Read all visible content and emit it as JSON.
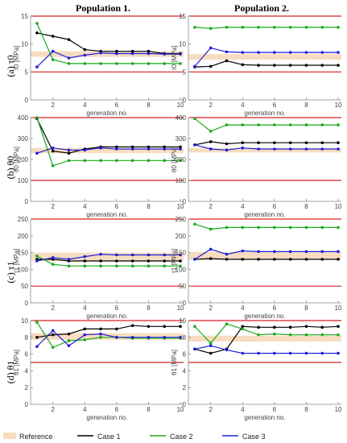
{
  "figure": {
    "columns": [
      "Population 1.",
      "Population 2."
    ],
    "rows": [
      {
        "label": "(a) τ0"
      },
      {
        "label": "(b) θ0"
      },
      {
        "label": "(c) τ1"
      },
      {
        "label": "(d) θ1"
      }
    ]
  },
  "legend": {
    "items": [
      {
        "label": "Reference",
        "color": "#f7dcc0",
        "kind": "band"
      },
      {
        "label": "Case 1",
        "color": "#000000",
        "kind": "line"
      },
      {
        "label": "Case 2",
        "color": "#1aaa1a",
        "kind": "line"
      },
      {
        "label": "Case 3",
        "color": "#1f1fd6",
        "kind": "line"
      }
    ]
  },
  "colors": {
    "bound": "#d62020",
    "reference": "#f7dcc0",
    "case1": "#000000",
    "case2": "#1aaa1a",
    "case3": "#1f1fd6"
  },
  "chart_data": [
    {
      "type": "line",
      "id": "tau0-pop1",
      "xlabel": "generation no.",
      "ylabel": "τ0 [MPa]",
      "xlim": [
        0.6,
        10.2
      ],
      "ylim": [
        0,
        15
      ],
      "xticks": [
        2,
        4,
        6,
        8,
        10
      ],
      "yticks": [
        0,
        5,
        10,
        15
      ],
      "bounds": [
        5,
        15
      ],
      "reference": [
        7.7,
        8.7
      ],
      "x": [
        1,
        2,
        3,
        4,
        5,
        6,
        7,
        8,
        9,
        10
      ],
      "series": [
        {
          "name": "Case 1",
          "values": [
            12.0,
            11.4,
            10.8,
            9.0,
            8.7,
            8.7,
            8.7,
            8.7,
            8.3,
            8.3
          ]
        },
        {
          "name": "Case 2",
          "values": [
            13.7,
            7.2,
            6.5,
            6.5,
            6.5,
            6.5,
            6.5,
            6.5,
            6.5,
            6.5
          ]
        },
        {
          "name": "Case 3",
          "values": [
            5.9,
            8.7,
            7.5,
            8.0,
            8.4,
            8.3,
            8.3,
            8.3,
            8.2,
            8.2
          ]
        }
      ]
    },
    {
      "type": "line",
      "id": "tau0-pop2",
      "xlabel": "generation no.",
      "ylabel": "τ0 [MPa]",
      "xlim": [
        0.6,
        10.2
      ],
      "ylim": [
        0,
        15
      ],
      "xticks": [
        2,
        4,
        6,
        8,
        10
      ],
      "yticks": [
        0,
        5,
        10,
        15
      ],
      "bounds": [
        5,
        15
      ],
      "reference": [
        7.2,
        8.2
      ],
      "x": [
        1,
        2,
        3,
        4,
        5,
        6,
        7,
        8,
        9,
        10
      ],
      "series": [
        {
          "name": "Case 1",
          "values": [
            5.9,
            6.0,
            7.0,
            6.3,
            6.2,
            6.2,
            6.2,
            6.2,
            6.2,
            6.2
          ]
        },
        {
          "name": "Case 2",
          "values": [
            13.0,
            12.8,
            13.0,
            13.0,
            13.0,
            13.0,
            13.0,
            13.0,
            13.0,
            13.0
          ]
        },
        {
          "name": "Case 3",
          "values": [
            6.0,
            9.3,
            8.6,
            8.5,
            8.5,
            8.5,
            8.5,
            8.5,
            8.5,
            8.5
          ]
        }
      ]
    },
    {
      "type": "line",
      "id": "theta0-pop1",
      "xlabel": "generation no.",
      "ylabel": "θ0 [MPa]",
      "xlim": [
        0.6,
        10.2
      ],
      "ylim": [
        0,
        400
      ],
      "xticks": [
        2,
        4,
        6,
        8,
        10
      ],
      "yticks": [
        0,
        100,
        200,
        300,
        400
      ],
      "bounds": [
        100,
        400
      ],
      "reference": [
        230,
        255
      ],
      "x": [
        1,
        2,
        3,
        4,
        5,
        6,
        7,
        8,
        9,
        10
      ],
      "series": [
        {
          "name": "Case 1",
          "values": [
            395,
            240,
            230,
            250,
            260,
            260,
            260,
            260,
            260,
            260
          ]
        },
        {
          "name": "Case 2",
          "values": [
            400,
            170,
            195,
            195,
            195,
            195,
            195,
            195,
            195,
            195
          ]
        },
        {
          "name": "Case 3",
          "values": [
            230,
            255,
            245,
            245,
            255,
            250,
            250,
            250,
            250,
            250
          ]
        }
      ]
    },
    {
      "type": "line",
      "id": "theta0-pop2",
      "xlabel": "generation no.",
      "ylabel": "θ0 [MPa]",
      "xlim": [
        0.6,
        10.2
      ],
      "ylim": [
        0,
        400
      ],
      "xticks": [
        2,
        4,
        6,
        8,
        10
      ],
      "yticks": [
        0,
        100,
        200,
        300,
        400
      ],
      "bounds": [
        100,
        400
      ],
      "reference": [
        233,
        255
      ],
      "x": [
        1,
        2,
        3,
        4,
        5,
        6,
        7,
        8,
        9,
        10
      ],
      "series": [
        {
          "name": "Case 1",
          "values": [
            270,
            285,
            275,
            280,
            280,
            280,
            280,
            280,
            280,
            280
          ]
        },
        {
          "name": "Case 2",
          "values": [
            395,
            335,
            365,
            365,
            365,
            365,
            365,
            365,
            365,
            365
          ]
        },
        {
          "name": "Case 3",
          "values": [
            270,
            250,
            245,
            255,
            250,
            250,
            250,
            250,
            250,
            250
          ]
        }
      ]
    },
    {
      "type": "line",
      "id": "tau1-pop1",
      "xlabel": "generation no.",
      "ylabel": "τ1 [MPa]",
      "xlim": [
        0.6,
        10.2
      ],
      "ylim": [
        0,
        250
      ],
      "xticks": [
        2,
        4,
        6,
        8,
        10
      ],
      "yticks": [
        0,
        50,
        100,
        150,
        200,
        250
      ],
      "bounds": [
        50,
        250
      ],
      "reference": [
        125,
        150
      ],
      "x": [
        1,
        2,
        3,
        4,
        5,
        6,
        7,
        8,
        9,
        10
      ],
      "series": [
        {
          "name": "Case 1",
          "values": [
            130,
            130,
            125,
            125,
            125,
            125,
            125,
            125,
            125,
            125
          ]
        },
        {
          "name": "Case 2",
          "values": [
            140,
            115,
            110,
            110,
            110,
            110,
            110,
            110,
            110,
            110
          ]
        },
        {
          "name": "Case 3",
          "values": [
            125,
            135,
            130,
            138,
            145,
            143,
            143,
            143,
            143,
            143
          ]
        }
      ]
    },
    {
      "type": "line",
      "id": "tau1-pop2",
      "xlabel": "generation no.",
      "ylabel": "τ1 [MPa]",
      "xlim": [
        0.6,
        10.2
      ],
      "ylim": [
        0,
        250
      ],
      "xticks": [
        2,
        4,
        6,
        8,
        10
      ],
      "yticks": [
        0,
        50,
        100,
        150,
        200,
        250
      ],
      "bounds": [
        50,
        250
      ],
      "reference": [
        128,
        152
      ],
      "x": [
        1,
        2,
        3,
        4,
        5,
        6,
        7,
        8,
        9,
        10
      ],
      "series": [
        {
          "name": "Case 1",
          "values": [
            130,
            132,
            130,
            130,
            130,
            130,
            130,
            130,
            130,
            130
          ]
        },
        {
          "name": "Case 2",
          "values": [
            235,
            220,
            225,
            225,
            225,
            225,
            225,
            225,
            225,
            225
          ]
        },
        {
          "name": "Case 3",
          "values": [
            130,
            160,
            145,
            155,
            153,
            153,
            153,
            153,
            153,
            153
          ]
        }
      ]
    },
    {
      "type": "line",
      "id": "theta1-pop1",
      "xlabel": "generation no.",
      "ylabel": "θ1 [MPa]",
      "xlim": [
        0.6,
        10.2
      ],
      "ylim": [
        0,
        10
      ],
      "xticks": [
        2,
        4,
        6,
        8,
        10
      ],
      "yticks": [
        0,
        2,
        4,
        6,
        8,
        10
      ],
      "bounds": [
        5,
        10
      ],
      "reference": [
        7.7,
        8.5
      ],
      "x": [
        1,
        2,
        3,
        4,
        5,
        6,
        7,
        8,
        9,
        10
      ],
      "series": [
        {
          "name": "Case 1",
          "values": [
            8.0,
            8.3,
            8.4,
            9.0,
            9.0,
            9.0,
            9.4,
            9.3,
            9.3,
            9.3
          ]
        },
        {
          "name": "Case 2",
          "values": [
            9.8,
            6.8,
            7.6,
            7.7,
            8.0,
            8.0,
            7.9,
            7.9,
            7.9,
            7.9
          ]
        },
        {
          "name": "Case 3",
          "values": [
            6.9,
            8.8,
            7.0,
            8.3,
            8.4,
            8.0,
            8.0,
            8.0,
            8.0,
            8.0
          ]
        }
      ]
    },
    {
      "type": "line",
      "id": "theta1-pop2",
      "xlabel": "generation no.",
      "ylabel": "θ1 [MPa]",
      "xlim": [
        0.6,
        10.2
      ],
      "ylim": [
        0,
        10
      ],
      "xticks": [
        2,
        4,
        6,
        8,
        10
      ],
      "yticks": [
        0,
        2,
        4,
        6,
        8,
        10
      ],
      "bounds": [
        5,
        10
      ],
      "reference": [
        7.5,
        8.2
      ],
      "x": [
        1,
        2,
        3,
        4,
        5,
        6,
        7,
        8,
        9,
        10
      ],
      "series": [
        {
          "name": "Case 1",
          "values": [
            6.6,
            6.1,
            6.6,
            9.3,
            9.2,
            9.2,
            9.2,
            9.3,
            9.2,
            9.3
          ]
        },
        {
          "name": "Case 2",
          "values": [
            9.3,
            7.3,
            9.6,
            9.0,
            8.3,
            8.4,
            8.3,
            8.3,
            8.3,
            8.3
          ]
        },
        {
          "name": "Case 3",
          "values": [
            6.6,
            7.0,
            6.5,
            6.1,
            6.1,
            6.1,
            6.1,
            6.1,
            6.1,
            6.1
          ]
        }
      ]
    }
  ]
}
